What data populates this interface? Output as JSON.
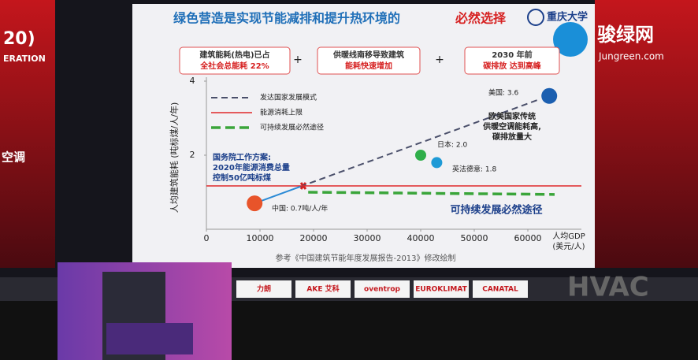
{
  "slide": {
    "title": "绿色营造是实现节能减排和提升热环境的",
    "title_emphasis": "必然选择",
    "university": "重庆大学",
    "boxes": [
      {
        "lines": [
          "建筑能耗(热电)已占",
          "全社会总能耗 22%"
        ]
      },
      {
        "lines": [
          "供暖线南移导致建筑",
          "能耗快速增加"
        ]
      },
      {
        "lines": [
          "2030 年前",
          "碳排放 达到高峰"
        ]
      }
    ],
    "operators": [
      "+",
      "+"
    ],
    "source": "参考《中国建筑节能年度发展报告-2013》修改绘制"
  },
  "watermark": {
    "name": "骏绿网",
    "url": "Jungreen.com"
  },
  "stage": {
    "left_texts": [
      "20)",
      "ERATION",
      "空调"
    ],
    "sponsors": [
      "力朗",
      "AKE 艾科",
      "oventrop",
      "EUROKLIMAT",
      "CANATAL"
    ],
    "backdrop": "HVAC"
  },
  "chart_data": {
    "type": "scatter",
    "x_label": "人均GDP",
    "x_unit": "(美元/人)",
    "y_label": "人均建筑能耗 (吨标煤/人/年)",
    "xlim": [
      0,
      70000
    ],
    "ylim": [
      0,
      4
    ],
    "xticks": [
      0,
      10000,
      20000,
      30000,
      40000,
      50000,
      60000
    ],
    "yticks": [
      2,
      4
    ],
    "x": [
      9000,
      40000,
      43000,
      64000
    ],
    "values": [
      0.7,
      2.0,
      1.8,
      3.6
    ],
    "value_labels": [
      "中国: 0.7吨/人/年",
      "日本: 2.0",
      "英法德意: 1.8",
      "美国: 3.6"
    ],
    "colors": [
      "#e8542a",
      "#2fae4a",
      "#1e9ad6",
      "#1b5fb0"
    ],
    "series": [
      {
        "name": "发达国家发展模式",
        "color": "#4a4f6a",
        "x": [
          17500,
          62000
        ],
        "values": [
          1.15,
          3.5
        ]
      },
      {
        "name": "能源消耗上限",
        "color": "#e0282a",
        "x": [
          0,
          70000
        ],
        "values": [
          1.17,
          1.17
        ]
      },
      {
        "name": "可持续发展必然途径",
        "color": "#3aa53a",
        "x": [
          19000,
          65000
        ],
        "values": [
          1.0,
          0.94
        ]
      }
    ],
    "annotations": [
      [
        "国务院工作方案:",
        "2020年能源消费总量",
        "控制50亿吨标煤"
      ],
      [
        "欧美国家传统",
        "供暖空调能耗高,",
        "碳排放量大"
      ],
      [
        "可持续发展必然途径"
      ]
    ]
  }
}
